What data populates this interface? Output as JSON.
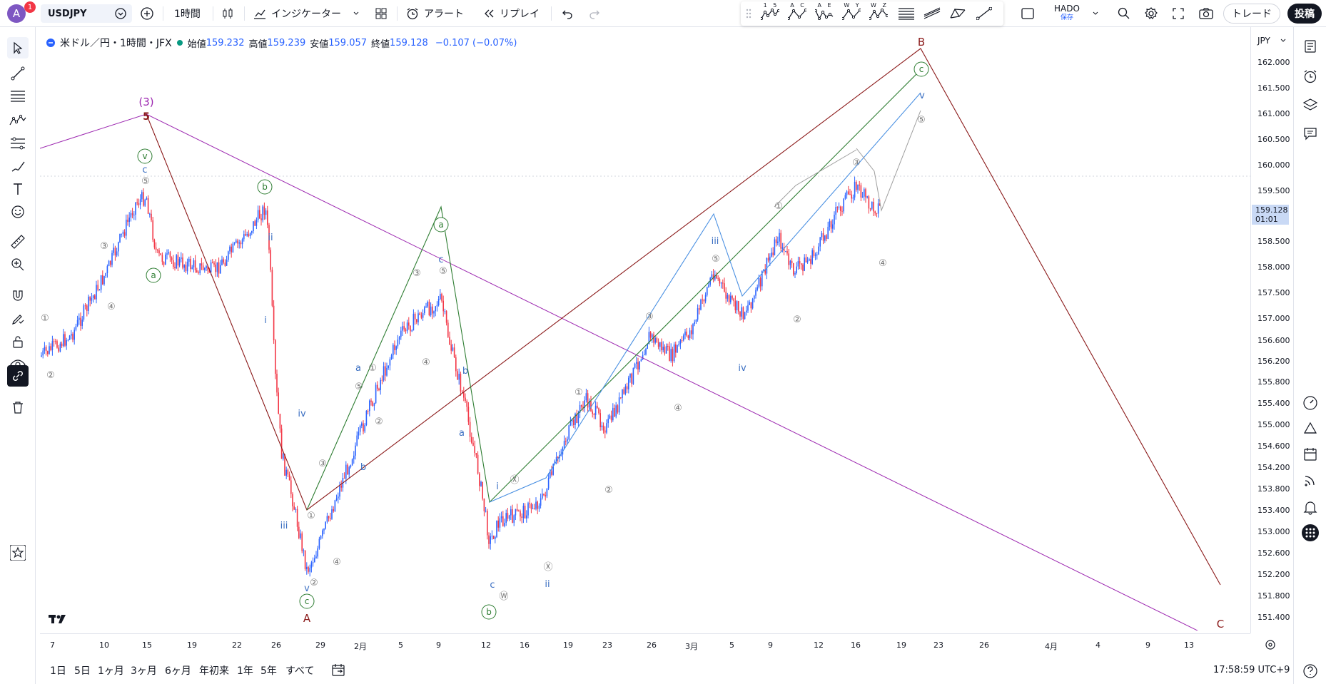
{
  "header": {
    "avatar_letter": "A",
    "avatar_badge": "1",
    "symbol": "USDJPY",
    "interval": "1時間",
    "indicators_label": "インジケーター",
    "alert_label": "アラート",
    "replay_label": "リプレイ",
    "layout_name": "HADO",
    "layout_status": "保存",
    "trade_label": "トレード",
    "post_label": "投稿"
  },
  "draw_toolbar": {
    "pattern_labels": [
      "1 5",
      "A C",
      "A E",
      "W Y",
      "W Z"
    ]
  },
  "legend": {
    "title": "米ドル／円・1時間・JFX",
    "open_label": "始値",
    "open_value": "159.232",
    "high_label": "高値",
    "high_value": "159.239",
    "low_label": "安値",
    "low_value": "159.057",
    "close_label": "終値",
    "close_value": "159.128",
    "change": "−0.107 (−0.07%)"
  },
  "price_axis": {
    "currency": "JPY",
    "current_price": "159.128",
    "countdown": "01:01",
    "ticks": [
      "162.000",
      "161.500",
      "161.000",
      "160.500",
      "160.000",
      "159.500",
      "158.500",
      "158.000",
      "157.500",
      "157.000",
      "156.600",
      "156.200",
      "155.800",
      "155.400",
      "155.000",
      "154.600",
      "154.200",
      "153.800",
      "153.400",
      "153.000",
      "152.600",
      "152.200",
      "151.800",
      "151.400"
    ]
  },
  "time_axis": {
    "ticks": [
      "7",
      "10",
      "15",
      "19",
      "22",
      "26",
      "29",
      "2月",
      "5",
      "9",
      "12",
      "16",
      "19",
      "23",
      "26",
      "3月",
      "5",
      "9",
      "12",
      "16",
      "19",
      "23",
      "26",
      "4月",
      "4",
      "9",
      "13"
    ]
  },
  "bottom": {
    "ranges": [
      "1日",
      "5日",
      "1ヶ月",
      "3ヶ月",
      "6ヶ月",
      "年初来",
      "1年",
      "5年",
      "すべて"
    ],
    "clock": "17:58:59 UTC+9"
  },
  "annotations": {
    "main_wave": [
      "(3)",
      "5",
      "A",
      "B",
      "C"
    ],
    "green_circles": [
      "v",
      "a",
      "b",
      "a",
      "b",
      "c",
      "c"
    ],
    "blue_labels": [
      "c",
      "ii",
      "i",
      "iv",
      "iii",
      "v",
      "a",
      "b",
      "c",
      "b",
      "a",
      "c",
      "i",
      "ii",
      "iii",
      "iv",
      "v"
    ],
    "small_numbers": [
      "①",
      "②",
      "③",
      "④",
      "⑤",
      "Ⓧ",
      "Ⓦ"
    ]
  },
  "colors": {
    "up": "#2962ff",
    "down": "#f23645",
    "wave_purple": "#9c27b0",
    "wave_brown": "#8b1a1a",
    "wave_green": "#2e7d32",
    "wave_blue": "#4a90e2"
  }
}
